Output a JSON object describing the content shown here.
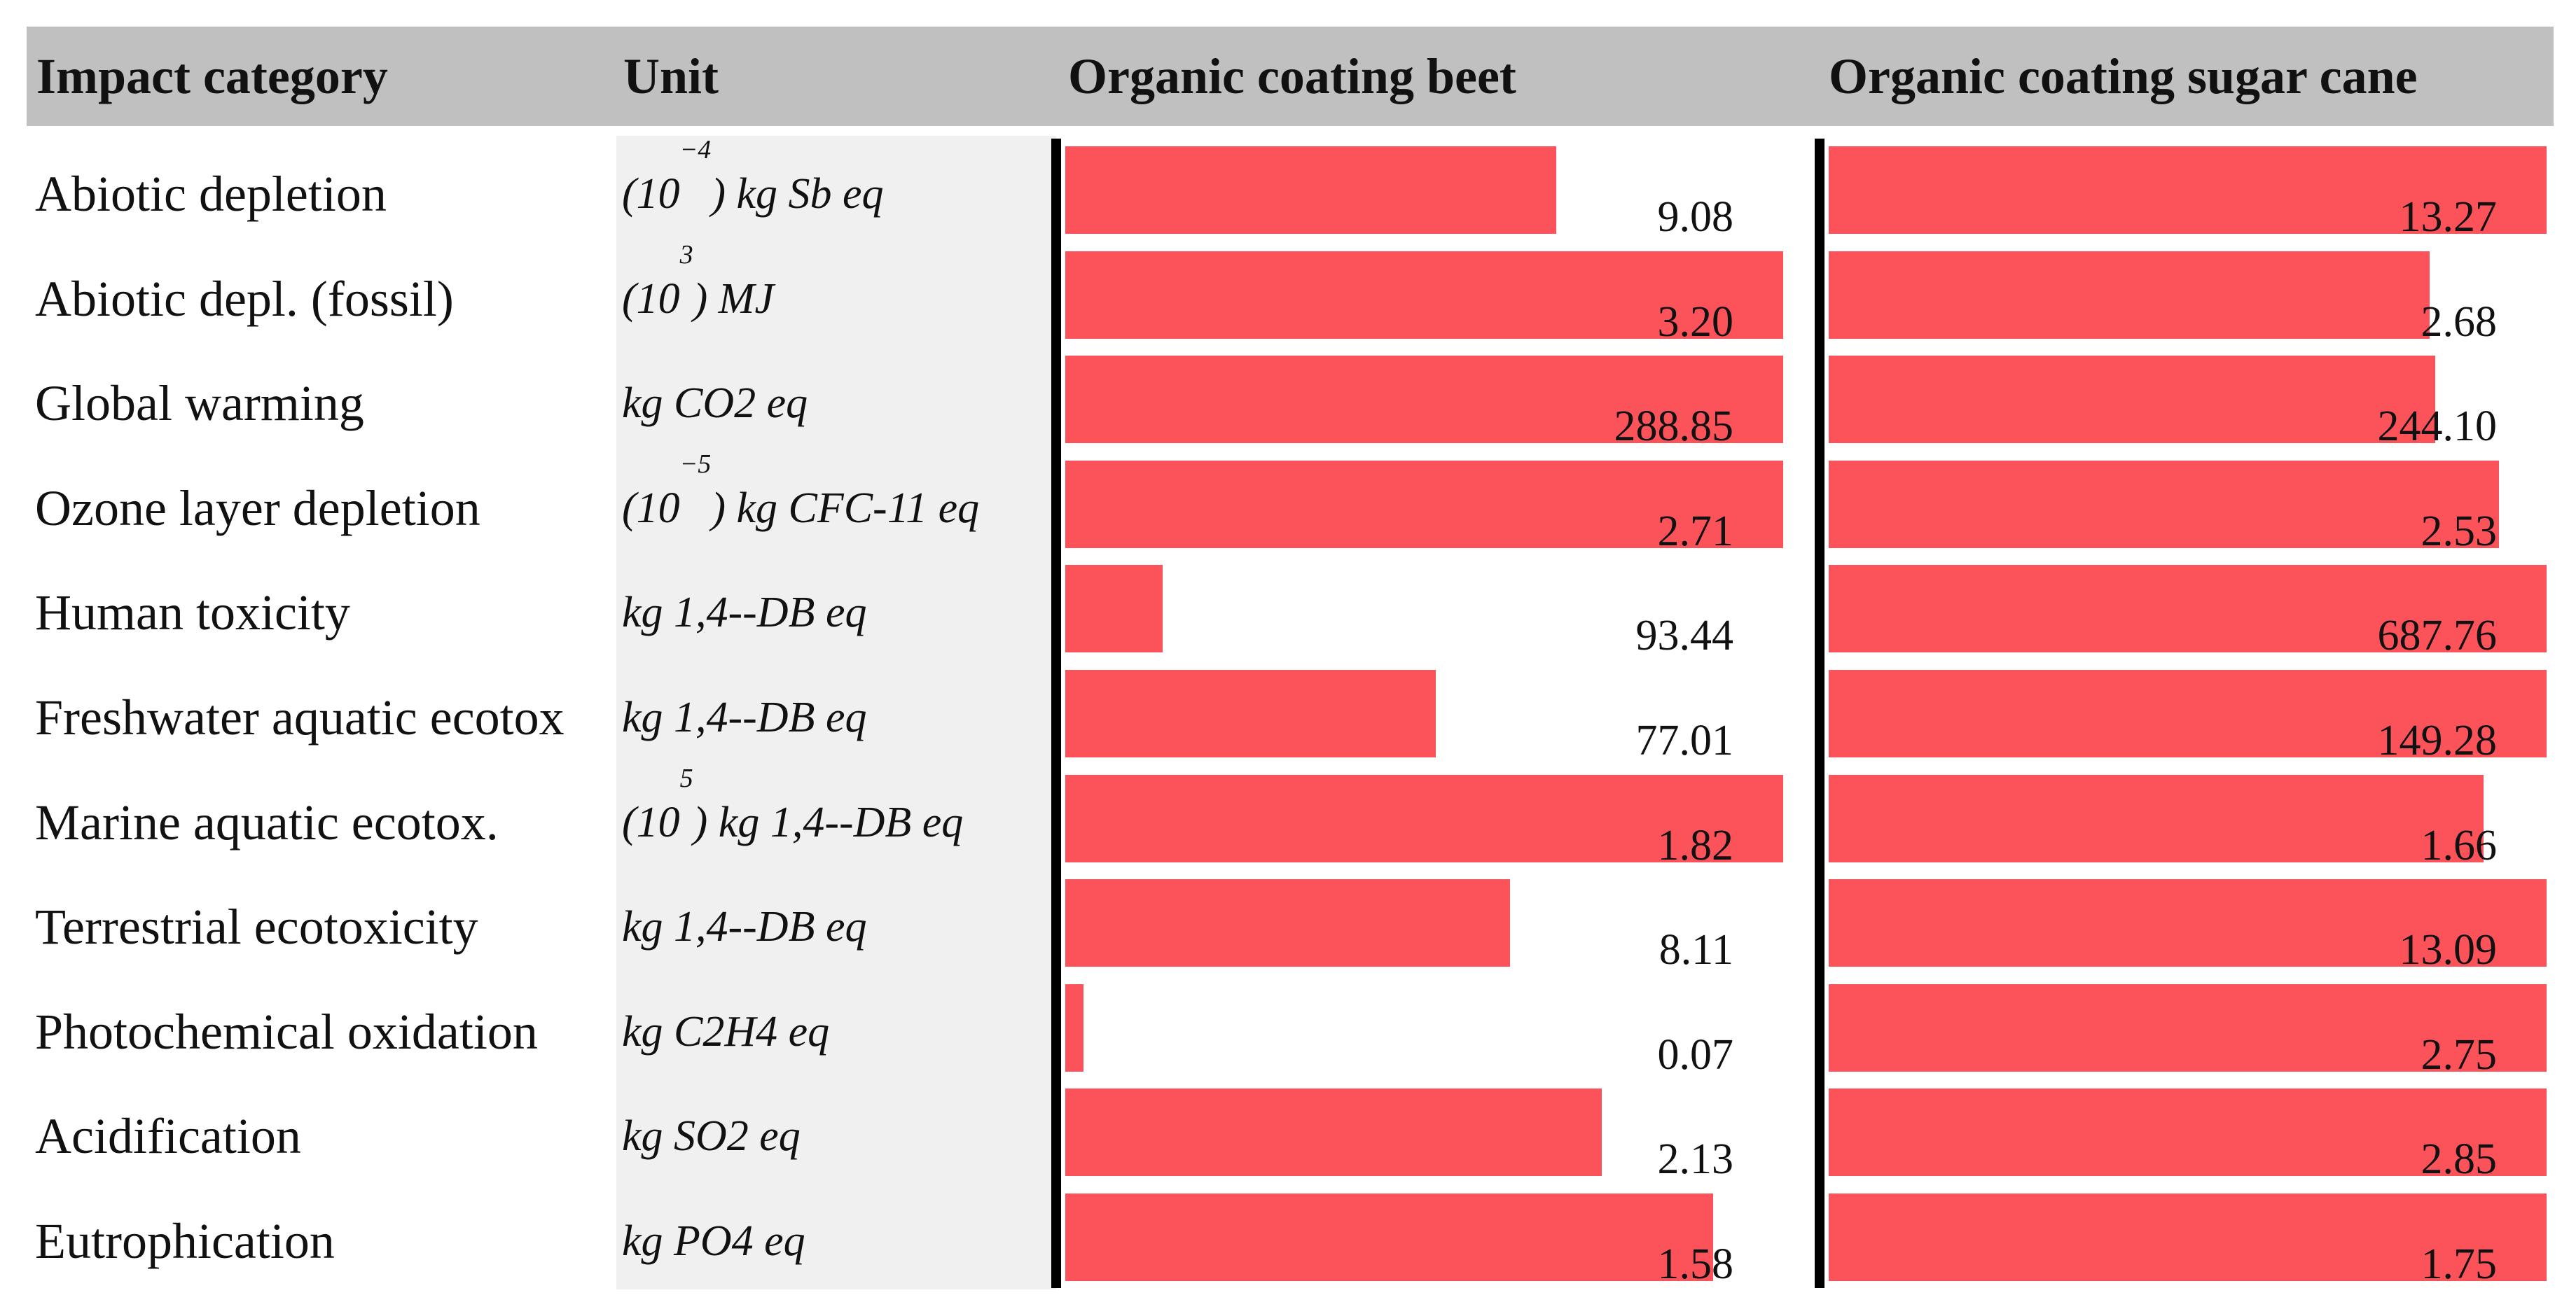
{
  "headers": {
    "category": "Impact category",
    "unit": "Unit",
    "beet": "Organic coating beet",
    "cane": "Organic coating sugar cane"
  },
  "colors": {
    "bar": "#fc535b",
    "header_bg": "#c0c0c0",
    "unit_bg": "#f0f0f0"
  },
  "chart_data": {
    "type": "bar",
    "orientation": "horizontal",
    "title": "",
    "note": "Each row's bars are scaled relative to the larger of the two values in that row",
    "categories": [
      "Abiotic depletion",
      "Abiotic depl. (fossil)",
      "Global warming",
      "Ozone layer depletion",
      "Human toxicity",
      "Freshwater aquatic ecotox",
      "Marine aquatic ecotox.",
      "Terrestrial ecotoxicity",
      "Photochemical oxidation",
      "Acidification",
      "Eutrophication"
    ],
    "rows": [
      {
        "category": "Abiotic depletion",
        "unit_pre": "(10",
        "unit_sup": "−4",
        "unit_post": ") kg Sb eq",
        "beet": "9.08",
        "cane": "13.27"
      },
      {
        "category": "Abiotic depl. (fossil)",
        "unit_pre": "(10",
        "unit_sup": "3",
        "unit_post": ") MJ",
        "beet": "3.20",
        "cane": "2.68"
      },
      {
        "category": "Global warming",
        "unit_pre": "kg CO2 eq",
        "unit_sup": "",
        "unit_post": "",
        "beet": "288.85",
        "cane": "244.10"
      },
      {
        "category": "Ozone layer depletion",
        "unit_pre": "(10",
        "unit_sup": "−5",
        "unit_post": ") kg CFC-11 eq",
        "beet": "2.71",
        "cane": "2.53"
      },
      {
        "category": "Human toxicity",
        "unit_pre": "kg 1,4--DB eq",
        "unit_sup": "",
        "unit_post": "",
        "beet": "93.44",
        "cane": "687.76"
      },
      {
        "category": "Freshwater aquatic ecotox",
        "unit_pre": "kg 1,4--DB eq",
        "unit_sup": "",
        "unit_post": "",
        "beet": "77.01",
        "cane": "149.28"
      },
      {
        "category": "Marine aquatic ecotox.",
        "unit_pre": "(10",
        "unit_sup": "5",
        "unit_post": ") kg 1,4--DB eq",
        "beet": "1.82",
        "cane": "1.66"
      },
      {
        "category": "Terrestrial ecotoxicity",
        "unit_pre": "kg 1,4--DB eq",
        "unit_sup": "",
        "unit_post": "",
        "beet": "8.11",
        "cane": "13.09"
      },
      {
        "category": "Photochemical oxidation",
        "unit_pre": "kg C2H4 eq",
        "unit_sup": "",
        "unit_post": "",
        "beet": "0.07",
        "cane": "2.75"
      },
      {
        "category": "Acidification",
        "unit_pre": "kg SO2 eq",
        "unit_sup": "",
        "unit_post": "",
        "beet": "2.13",
        "cane": "2.85"
      },
      {
        "category": "Eutrophication",
        "unit_pre": "kg PO4 eq",
        "unit_sup": "",
        "unit_post": "",
        "beet": "1.58",
        "cane": "1.75"
      }
    ]
  }
}
